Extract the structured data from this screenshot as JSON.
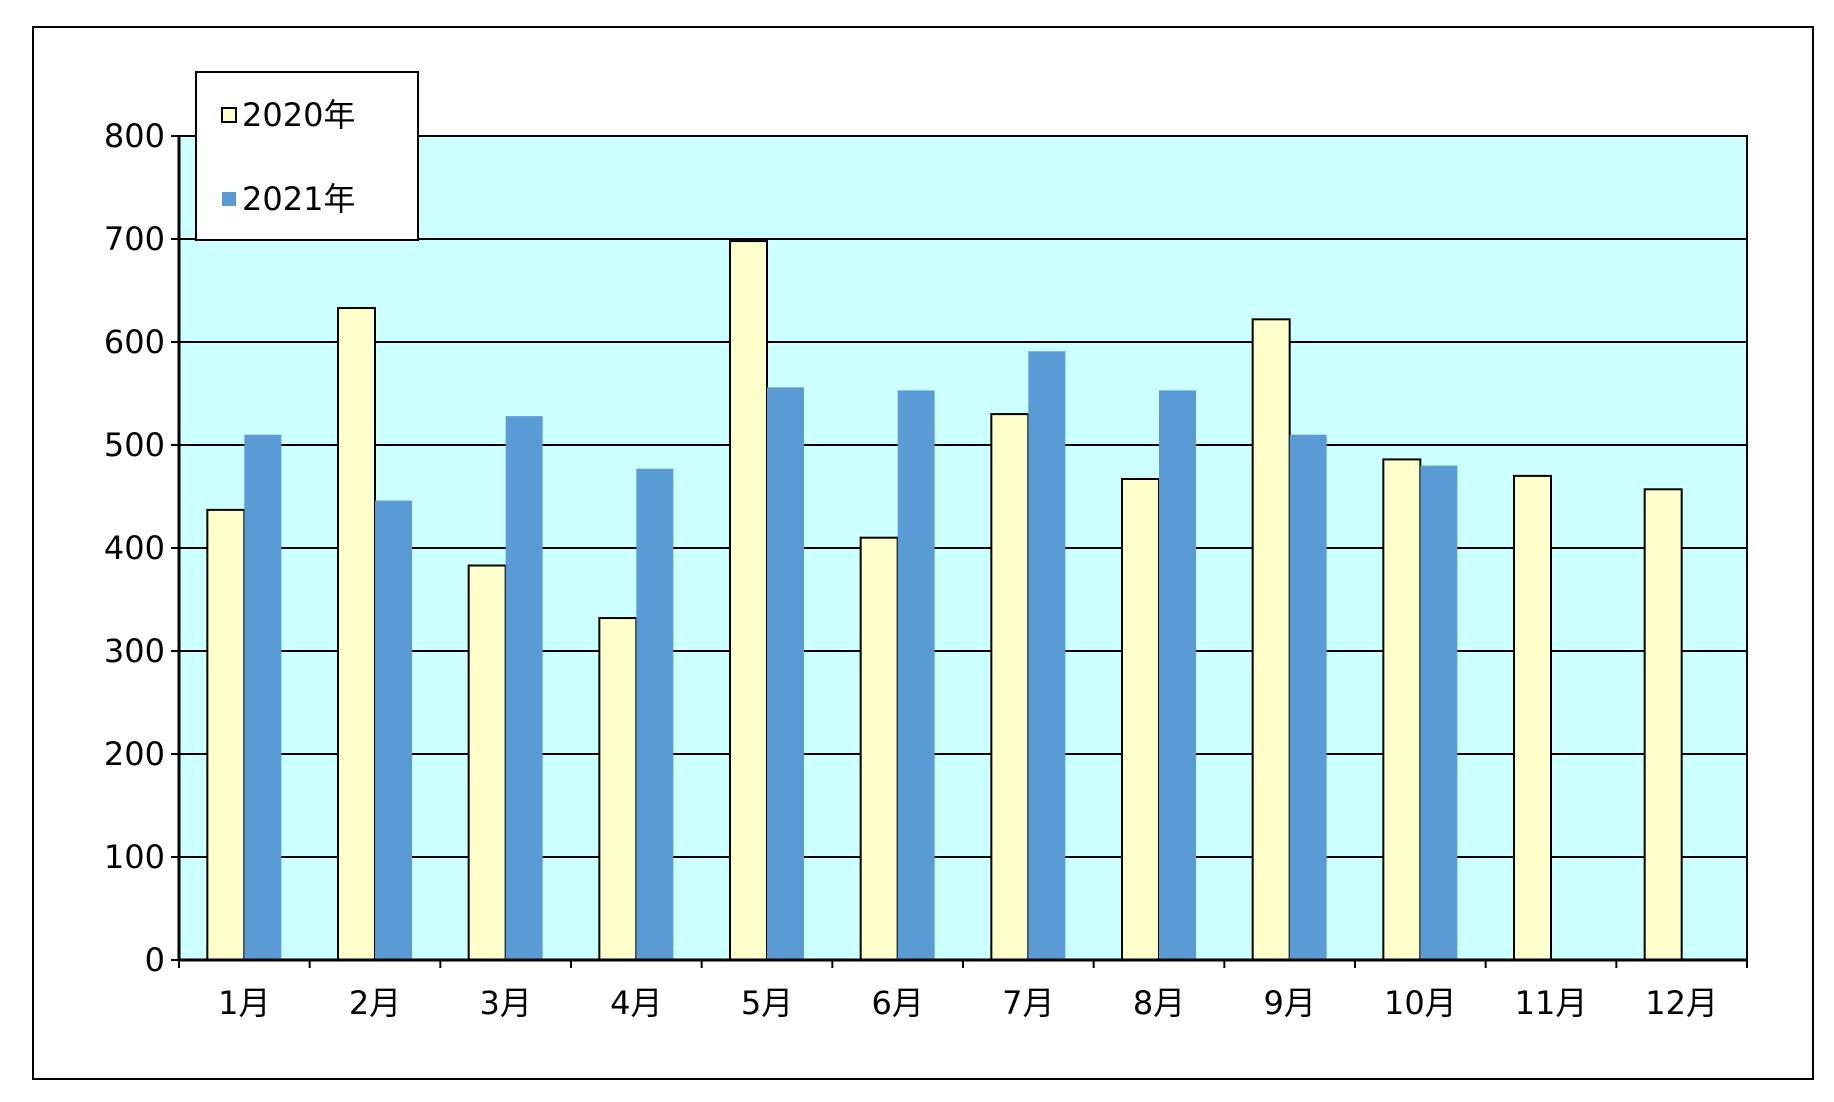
{
  "chart_data": {
    "type": "bar",
    "title": "",
    "xlabel": "",
    "ylabel": "",
    "categories": [
      "1月",
      "2月",
      "3月",
      "4月",
      "5月",
      "6月",
      "7月",
      "8月",
      "9月",
      "10月",
      "11月",
      "12月"
    ],
    "series": [
      {
        "name": "2020年",
        "values": [
          437,
          633,
          383,
          332,
          698,
          410,
          530,
          467,
          622,
          486,
          470,
          457
        ],
        "color": "#ffffcc"
      },
      {
        "name": "2021年",
        "values": [
          510,
          446,
          528,
          477,
          556,
          553,
          591,
          553,
          510,
          480,
          null,
          null
        ],
        "color": "#5b9bd5"
      }
    ],
    "ylim": [
      0,
      800
    ],
    "yticks": [
      0,
      100,
      200,
      300,
      400,
      500,
      600,
      700,
      800
    ],
    "grid": true,
    "plot_background": "#ccffff",
    "legend_position": "top-left"
  }
}
